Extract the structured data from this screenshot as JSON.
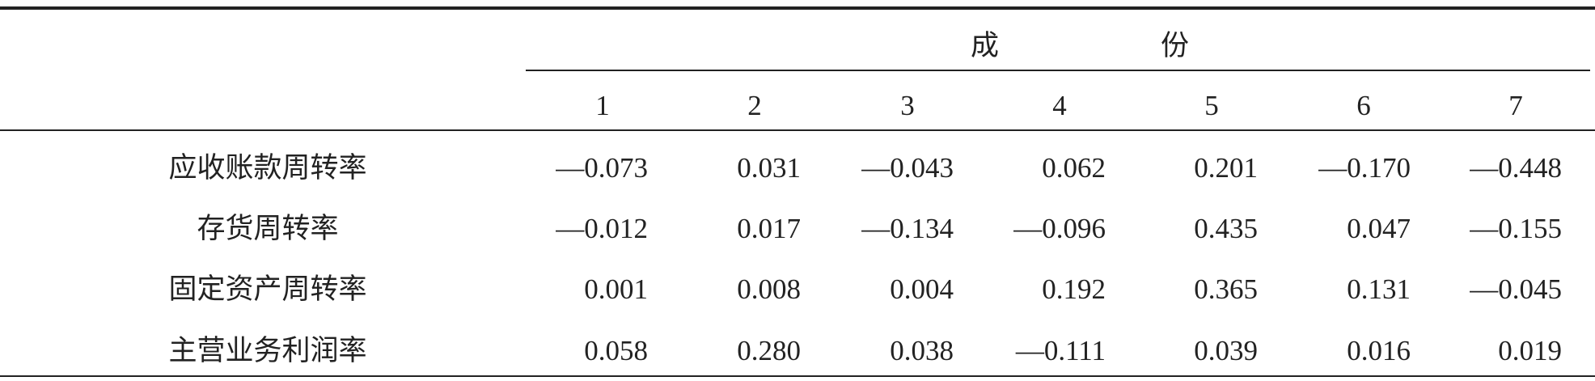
{
  "header": {
    "group": "成份",
    "columns": [
      "1",
      "2",
      "3",
      "4",
      "5",
      "6",
      "7"
    ]
  },
  "table": {
    "rows": [
      [
        "应收账款周转率",
        "—0.073",
        "0.031",
        "—0.043",
        "0.062",
        "0.201",
        "—0.170",
        "—0.448"
      ],
      [
        "存货周转率",
        "—0.012",
        "0.017",
        "—0.134",
        "—0.096",
        "0.435",
        "0.047",
        "—0.155"
      ],
      [
        "固定资产周转率",
        "0.001",
        "0.008",
        "0.004",
        "0.192",
        "0.365",
        "0.131",
        "—0.045"
      ],
      [
        "主营业务利润率",
        "0.058",
        "0.280",
        "0.038",
        "—0.111",
        "0.039",
        "0.016",
        "0.019"
      ]
    ]
  }
}
